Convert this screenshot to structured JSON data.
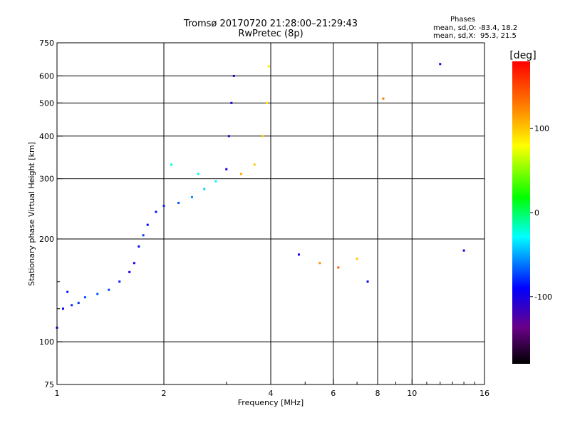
{
  "title": "Tromsø 20170720 21:28:00–21:29:43",
  "subtitle": "RwPretec (8p)",
  "phases": {
    "heading": "Phases",
    "o_line": "mean, sd,O: -83.4, 18.2",
    "x_line": "mean, sd,X:  95.3, 21.5"
  },
  "colorbar": {
    "unit": "[deg]",
    "range": [
      -180,
      180
    ],
    "ticks": [
      {
        "value": 100,
        "label": "100"
      },
      {
        "value": 0,
        "label": "0"
      },
      {
        "value": -100,
        "label": "-100"
      }
    ]
  },
  "chart_data": {
    "type": "scatter",
    "xlabel": "Frequency [MHz]",
    "ylabel": "Stationary phase Virtual Height [km]",
    "xscale": "log",
    "yscale": "log",
    "xlim": [
      1,
      16
    ],
    "ylim": [
      75,
      750
    ],
    "grid": true,
    "x_ticks": [
      {
        "value": 1,
        "label": "1",
        "grid": false
      },
      {
        "value": 2,
        "label": "2",
        "grid": true
      },
      {
        "value": 4,
        "label": "4",
        "grid": true
      },
      {
        "value": 6,
        "label": "6",
        "grid": true
      },
      {
        "value": 8,
        "label": "8",
        "grid": true
      },
      {
        "value": 10,
        "label": "10",
        "grid": true
      },
      {
        "value": 16,
        "label": "16",
        "grid": false
      }
    ],
    "x_minor_ticks": [
      3,
      5,
      7,
      9,
      11,
      12,
      13,
      14,
      15
    ],
    "y_ticks": [
      {
        "value": 75,
        "label": "75",
        "grid": false
      },
      {
        "value": 100,
        "label": "100",
        "grid": true
      },
      {
        "value": 200,
        "label": "200",
        "grid": true
      },
      {
        "value": 300,
        "label": "300",
        "grid": true
      },
      {
        "value": 400,
        "label": "400",
        "grid": true
      },
      {
        "value": 500,
        "label": "500",
        "grid": true
      },
      {
        "value": 600,
        "label": "600",
        "grid": true
      },
      {
        "value": 750,
        "label": "750",
        "grid": false
      }
    ],
    "y_minor_ticks": [
      125,
      150
    ],
    "points_note_unused": null,
    "points": [
      {
        "x": 1.0,
        "y": 110,
        "phase": -88
      },
      {
        "x": 1.04,
        "y": 125,
        "phase": -92
      },
      {
        "x": 1.07,
        "y": 140,
        "phase": -85
      },
      {
        "x": 1.1,
        "y": 128,
        "phase": -80
      },
      {
        "x": 1.15,
        "y": 130,
        "phase": -78
      },
      {
        "x": 1.2,
        "y": 135,
        "phase": -72
      },
      {
        "x": 1.3,
        "y": 138,
        "phase": -70
      },
      {
        "x": 1.4,
        "y": 142,
        "phase": -75
      },
      {
        "x": 1.5,
        "y": 150,
        "phase": -82
      },
      {
        "x": 1.6,
        "y": 160,
        "phase": -95
      },
      {
        "x": 1.65,
        "y": 170,
        "phase": -100
      },
      {
        "x": 1.7,
        "y": 190,
        "phase": -88
      },
      {
        "x": 1.75,
        "y": 205,
        "phase": -76
      },
      {
        "x": 1.8,
        "y": 220,
        "phase": -90
      },
      {
        "x": 1.9,
        "y": 240,
        "phase": -84
      },
      {
        "x": 2.0,
        "y": 250,
        "phase": -80
      },
      {
        "x": 2.2,
        "y": 255,
        "phase": -70
      },
      {
        "x": 2.4,
        "y": 265,
        "phase": -55
      },
      {
        "x": 2.6,
        "y": 280,
        "phase": -40
      },
      {
        "x": 2.8,
        "y": 295,
        "phase": -30
      },
      {
        "x": 3.0,
        "y": 320,
        "phase": -100
      },
      {
        "x": 3.05,
        "y": 400,
        "phase": -110
      },
      {
        "x": 3.1,
        "y": 500,
        "phase": -105
      },
      {
        "x": 3.15,
        "y": 600,
        "phase": -115
      },
      {
        "x": 3.3,
        "y": 310,
        "phase": 110
      },
      {
        "x": 3.6,
        "y": 330,
        "phase": 100
      },
      {
        "x": 3.8,
        "y": 400,
        "phase": 95
      },
      {
        "x": 3.9,
        "y": 500,
        "phase": 90
      },
      {
        "x": 3.95,
        "y": 640,
        "phase": 88
      },
      {
        "x": 2.1,
        "y": 330,
        "phase": -20
      },
      {
        "x": 2.5,
        "y": 310,
        "phase": -25
      },
      {
        "x": 4.8,
        "y": 180,
        "phase": -95
      },
      {
        "x": 5.5,
        "y": 170,
        "phase": 120
      },
      {
        "x": 6.2,
        "y": 165,
        "phase": 140
      },
      {
        "x": 7.0,
        "y": 175,
        "phase": 100
      },
      {
        "x": 7.5,
        "y": 150,
        "phase": -90
      },
      {
        "x": 8.3,
        "y": 515,
        "phase": 130
      },
      {
        "x": 12.0,
        "y": 650,
        "phase": -110
      },
      {
        "x": 14.0,
        "y": 185,
        "phase": -100
      }
    ]
  }
}
